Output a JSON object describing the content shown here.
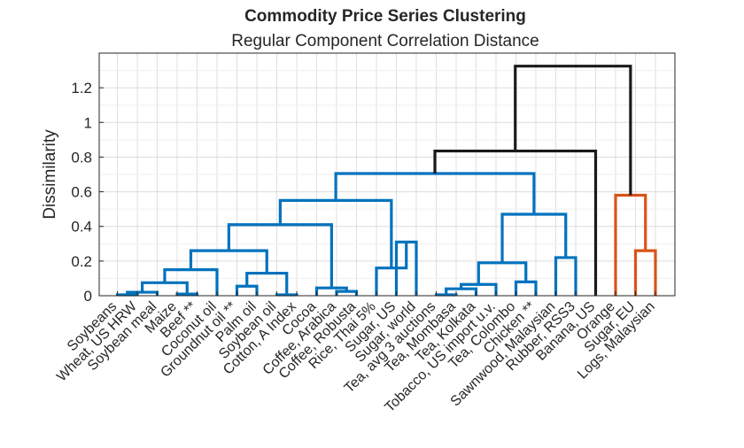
{
  "chart_data": {
    "type": "dendrogram",
    "title": "Commodity Price Series Clustering",
    "subtitle": "Regular Component Correlation Distance",
    "ylabel": "Dissimilarity",
    "xlabel": "",
    "ylim": [
      0,
      1.4
    ],
    "yticks": [
      0,
      0.2,
      0.4,
      0.6,
      0.8,
      1,
      1.2
    ],
    "ytick_labels": [
      "0",
      "0.2",
      "0.4",
      "0.6",
      "0.8",
      "1",
      "1.2"
    ],
    "grid": true,
    "colors": {
      "cluster_1": "#0072BD",
      "cluster_2": "#D95319",
      "above_cut": "#1a1a1a"
    },
    "leaves": [
      "Soybeans",
      "Wheat, US HRW",
      "Soybean meal",
      "Maize",
      "Beef **",
      "Coconut oil",
      "Groundnut oil **",
      "Palm oil",
      "Soybean oil",
      "Cotton, A Index",
      "Cocoa",
      "Coffee, Arabica",
      "Coffee, Robusta",
      "Rice, Thai 5%",
      "Sugar, US",
      "Sugar, world",
      "Tea, avg 3 auctions",
      "Tea, Mombasa",
      "Tea, Kolkata",
      "Tobacco, US import u.v.",
      "Tea, Colombo",
      "Chicken **",
      "Sawnwood, Malaysian",
      "Rubber, RSS3",
      "Banana, US",
      "Orange",
      "Sugar, EU",
      "Logs, Malaysian"
    ],
    "merges": [
      {
        "a": 1,
        "b": 2,
        "height": 0.005,
        "color": "cluster_1"
      },
      {
        "a": "L1",
        "b": 3,
        "height": 0.02,
        "color": "cluster_1"
      },
      {
        "a": 4,
        "b": 5,
        "height": 0.01,
        "color": "cluster_1"
      },
      {
        "a": "L2",
        "b": "L3",
        "height": 0.075,
        "color": "cluster_1"
      },
      {
        "a": "L4",
        "b": 6,
        "height": 0.15,
        "color": "cluster_1"
      },
      {
        "a": 7,
        "b": 8,
        "height": 0.055,
        "color": "cluster_1"
      },
      {
        "a": 9,
        "b": 10,
        "height": 0.005,
        "color": "cluster_1"
      },
      {
        "a": "L6",
        "b": "L7",
        "height": 0.13,
        "color": "cluster_1"
      },
      {
        "a": "L5",
        "b": "L8",
        "height": 0.26,
        "color": "cluster_1"
      },
      {
        "a": 12,
        "b": 13,
        "height": 0.025,
        "color": "cluster_1"
      },
      {
        "a": 11,
        "b": "L10",
        "height": 0.045,
        "color": "cluster_1"
      },
      {
        "a": "L9",
        "b": "L11",
        "height": 0.41,
        "color": "cluster_1"
      },
      {
        "a": 15,
        "b": 16,
        "height": 0.31,
        "color": "cluster_1"
      },
      {
        "a": 14,
        "b": "L13",
        "height": 0.16,
        "color": "cluster_1"
      },
      {
        "a": "L12",
        "b": "L14",
        "height": 0.55,
        "color": "cluster_1"
      },
      {
        "a": 17,
        "b": 18,
        "height": 0.005,
        "color": "cluster_1"
      },
      {
        "a": "L16",
        "b": 19,
        "height": 0.04,
        "color": "cluster_1"
      },
      {
        "a": "L17",
        "b": 20,
        "height": 0.065,
        "color": "cluster_1"
      },
      {
        "a": 21,
        "b": 22,
        "height": 0.08,
        "color": "cluster_1"
      },
      {
        "a": "L18",
        "b": "L19",
        "height": 0.19,
        "color": "cluster_1"
      },
      {
        "a": 23,
        "b": 24,
        "height": 0.22,
        "color": "cluster_1"
      },
      {
        "a": "L20",
        "b": "L21",
        "height": 0.47,
        "color": "cluster_1"
      },
      {
        "a": "L15",
        "b": "L22",
        "height": 0.705,
        "color": "cluster_1"
      },
      {
        "a": "L23",
        "b": 25,
        "height": 0.835,
        "color": "above_cut"
      },
      {
        "a": 27,
        "b": 28,
        "height": 0.26,
        "color": "cluster_2"
      },
      {
        "a": 26,
        "b": "L25",
        "height": 0.58,
        "color": "cluster_2"
      },
      {
        "a": "L24",
        "b": "L26",
        "height": 1.325,
        "color": "above_cut"
      }
    ]
  }
}
